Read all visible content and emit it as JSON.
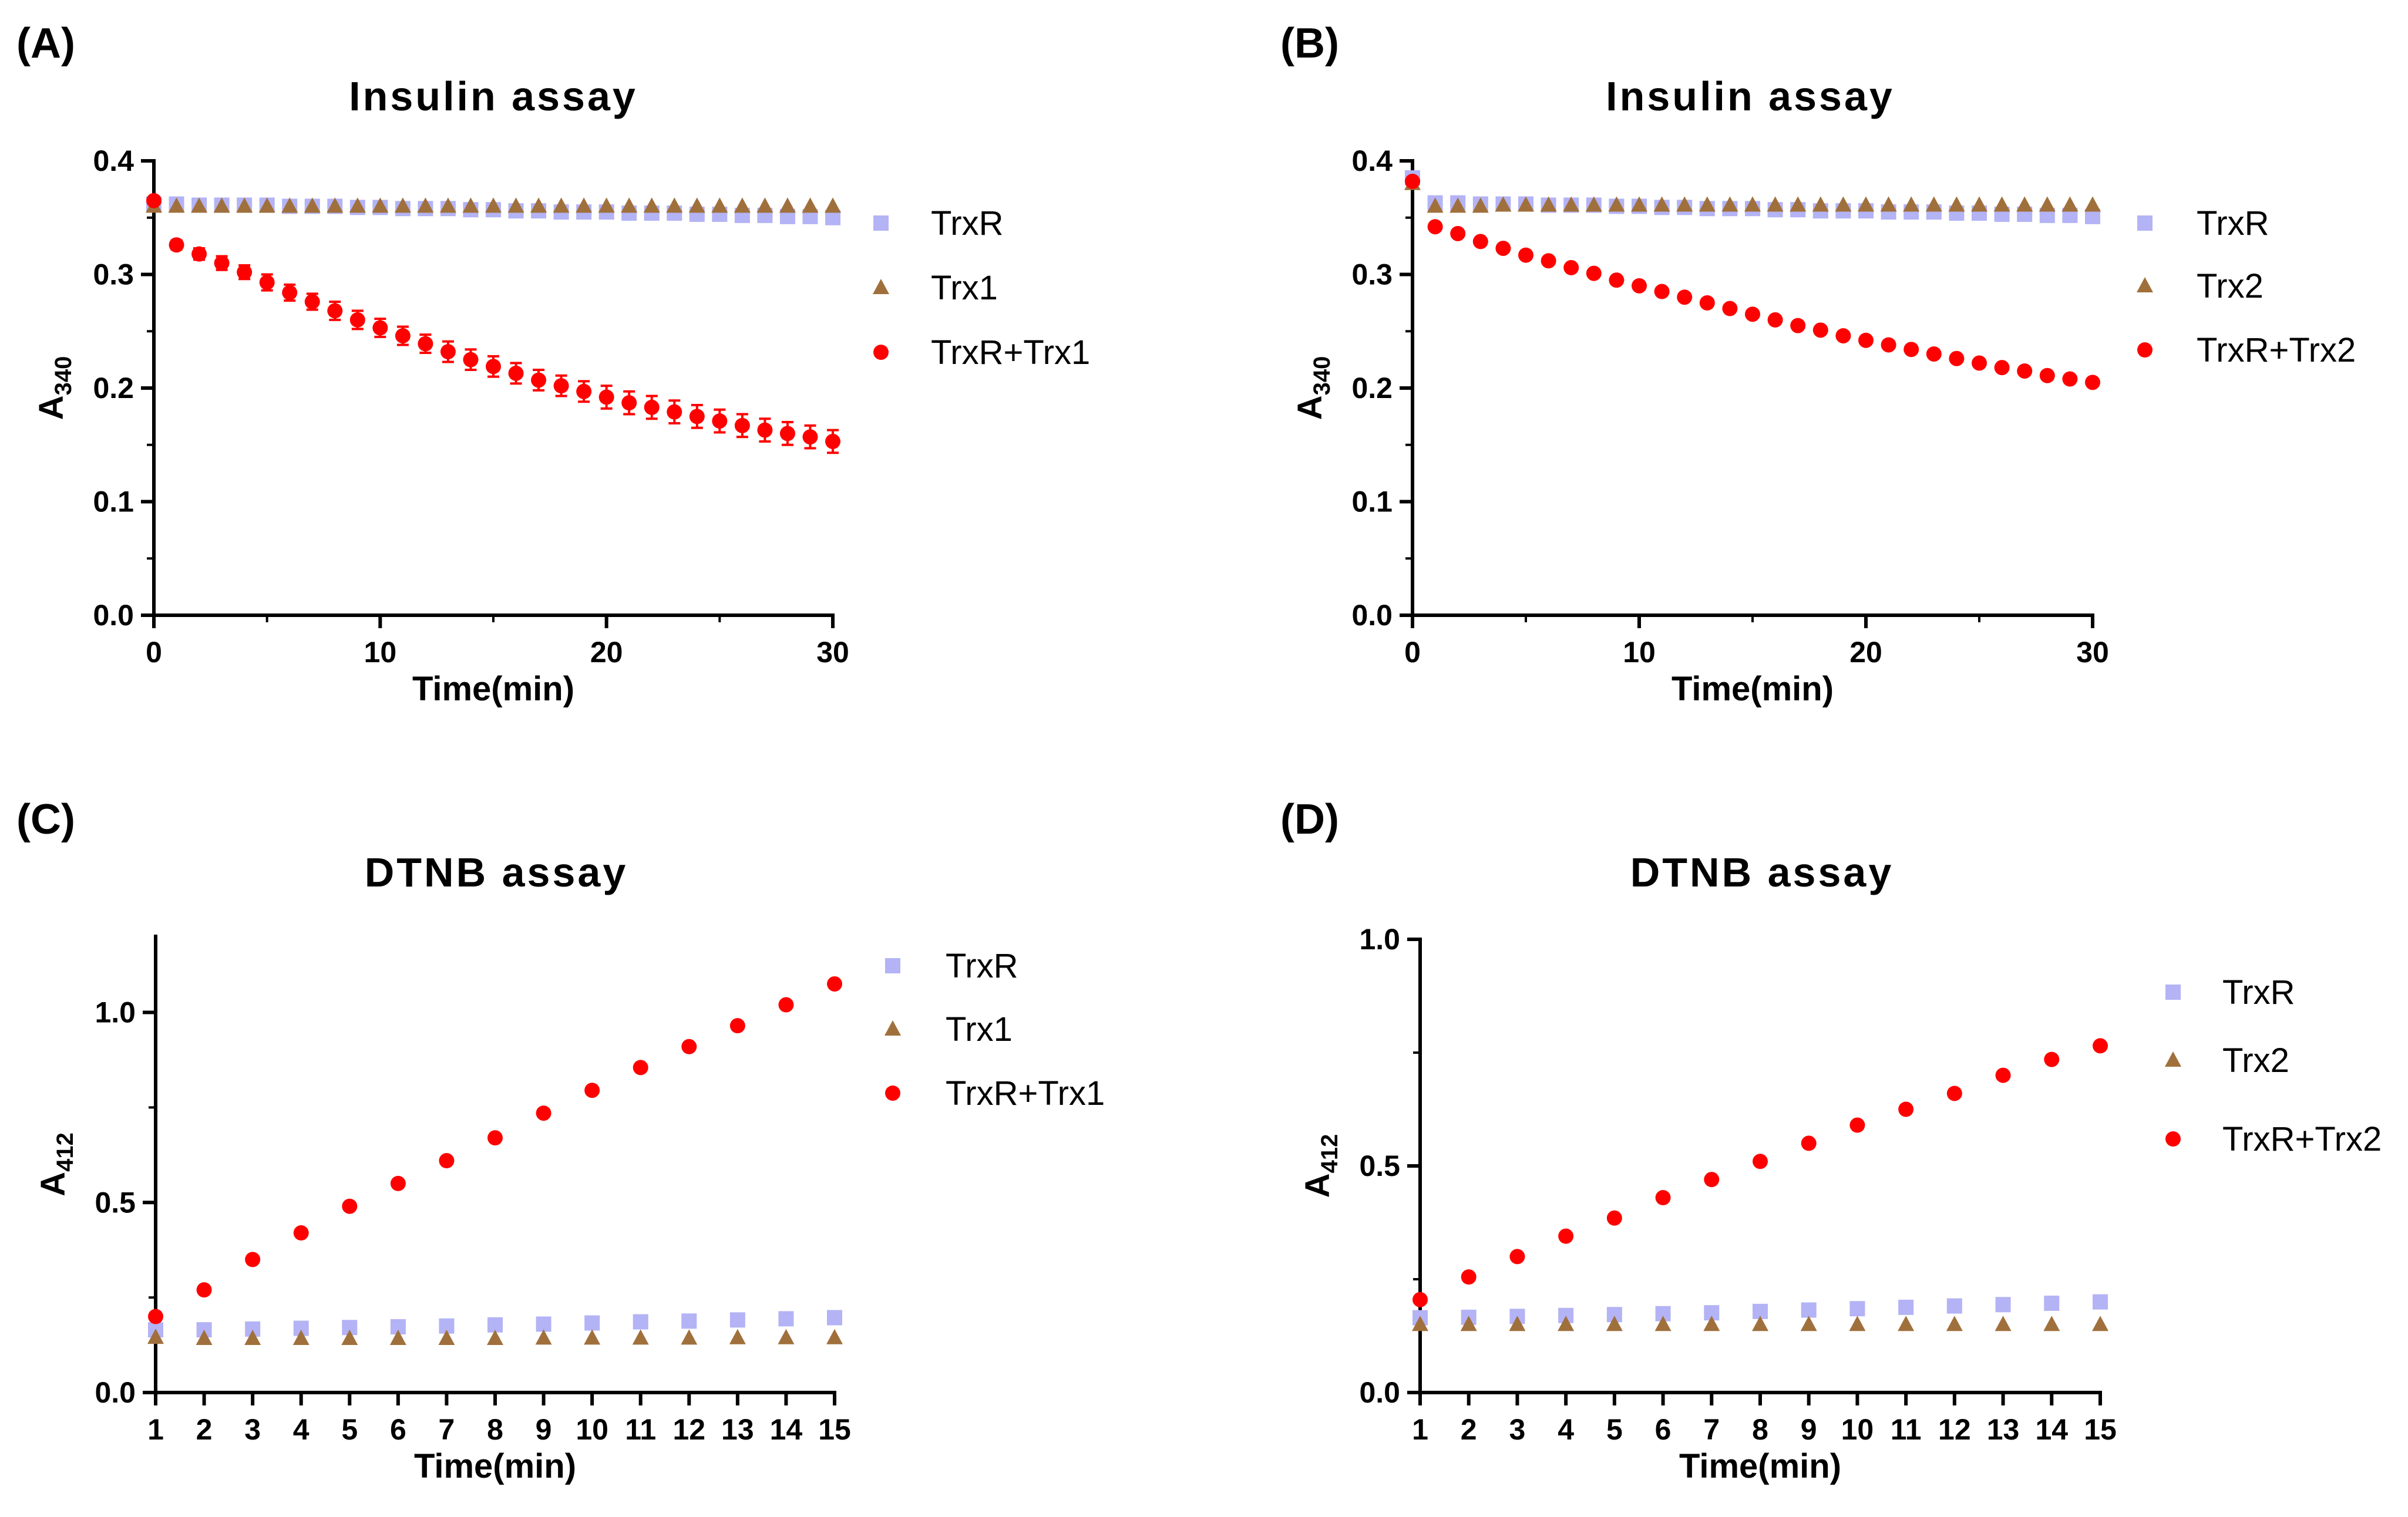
{
  "chart_data": [
    {
      "panel_label": "(A)",
      "type": "scatter",
      "title": "Insulin assay",
      "xlabel": "Time(min)",
      "ylabel": "A",
      "ylabel_sub": "340",
      "xlim": [
        0,
        30
      ],
      "ylim": [
        0,
        0.4
      ],
      "xticks": [
        0,
        10,
        20,
        30
      ],
      "xtick_labels": [
        "0",
        "10",
        "20",
        "30"
      ],
      "yticks": [
        0,
        0.1,
        0.2,
        0.3,
        0.4
      ],
      "ytick_labels": [
        "0.0",
        "0.1",
        "0.2",
        "0.3",
        "0.4"
      ],
      "legend_position": "right",
      "series": [
        {
          "name": "TrxR",
          "marker": "square",
          "color": "#b3b3f5",
          "x": [
            0,
            1,
            2,
            3,
            4,
            5,
            6,
            7,
            8,
            9,
            10,
            11,
            12,
            13,
            14,
            15,
            16,
            17,
            18,
            19,
            20,
            21,
            22,
            23,
            24,
            25,
            26,
            27,
            28,
            29,
            30
          ],
          "y": [
            0.362,
            0.362,
            0.361,
            0.361,
            0.361,
            0.361,
            0.36,
            0.36,
            0.36,
            0.359,
            0.359,
            0.358,
            0.358,
            0.358,
            0.357,
            0.357,
            0.356,
            0.356,
            0.355,
            0.355,
            0.355,
            0.354,
            0.354,
            0.354,
            0.353,
            0.353,
            0.352,
            0.352,
            0.351,
            0.351,
            0.35
          ]
        },
        {
          "name": "Trx1",
          "marker": "triangle",
          "color": "#a0703c",
          "x": [
            0,
            1,
            2,
            3,
            4,
            5,
            6,
            7,
            8,
            9,
            10,
            11,
            12,
            13,
            14,
            15,
            16,
            17,
            18,
            19,
            20,
            21,
            22,
            23,
            24,
            25,
            26,
            27,
            28,
            29,
            30
          ],
          "y": [
            0.36,
            0.36,
            0.36,
            0.36,
            0.36,
            0.36,
            0.36,
            0.36,
            0.36,
            0.36,
            0.36,
            0.36,
            0.36,
            0.36,
            0.36,
            0.36,
            0.36,
            0.36,
            0.36,
            0.36,
            0.36,
            0.36,
            0.36,
            0.36,
            0.36,
            0.36,
            0.36,
            0.36,
            0.36,
            0.36,
            0.36
          ]
        },
        {
          "name": "TrxR+Trx1",
          "marker": "circle",
          "color": "#ff0000",
          "x": [
            0,
            1,
            2,
            3,
            4,
            5,
            6,
            7,
            8,
            9,
            10,
            11,
            12,
            13,
            14,
            15,
            16,
            17,
            18,
            19,
            20,
            21,
            22,
            23,
            24,
            25,
            26,
            27,
            28,
            29,
            30
          ],
          "y": [
            0.365,
            0.326,
            0.318,
            0.31,
            0.302,
            0.293,
            0.284,
            0.276,
            0.268,
            0.26,
            0.253,
            0.246,
            0.239,
            0.232,
            0.225,
            0.219,
            0.213,
            0.207,
            0.202,
            0.197,
            0.192,
            0.187,
            0.183,
            0.179,
            0.175,
            0.171,
            0.167,
            0.163,
            0.16,
            0.157,
            0.153
          ],
          "err": [
            0,
            0.004,
            0.005,
            0.006,
            0.006,
            0.007,
            0.007,
            0.007,
            0.008,
            0.008,
            0.008,
            0.008,
            0.008,
            0.009,
            0.009,
            0.009,
            0.009,
            0.009,
            0.009,
            0.009,
            0.01,
            0.01,
            0.01,
            0.01,
            0.01,
            0.01,
            0.01,
            0.01,
            0.01,
            0.01,
            0.01
          ]
        }
      ]
    },
    {
      "panel_label": "(B)",
      "type": "scatter",
      "title": "Insulin assay",
      "xlabel": "Time(min)",
      "ylabel": "A",
      "ylabel_sub": "340",
      "xlim": [
        0,
        30
      ],
      "ylim": [
        0,
        0.4
      ],
      "xticks": [
        0,
        10,
        20,
        30
      ],
      "xtick_labels": [
        "0",
        "10",
        "20",
        "30"
      ],
      "yticks": [
        0,
        0.1,
        0.2,
        0.3,
        0.4
      ],
      "ytick_labels": [
        "0.0",
        "0.1",
        "0.2",
        "0.3",
        "0.4"
      ],
      "legend_position": "right",
      "series": [
        {
          "name": "TrxR",
          "marker": "square",
          "color": "#b3b3f5",
          "x": [
            0,
            1,
            2,
            3,
            4,
            5,
            6,
            7,
            8,
            9,
            10,
            11,
            12,
            13,
            14,
            15,
            16,
            17,
            18,
            19,
            20,
            21,
            22,
            23,
            24,
            25,
            26,
            27,
            28,
            29,
            30
          ],
          "y": [
            0.385,
            0.363,
            0.363,
            0.362,
            0.362,
            0.362,
            0.361,
            0.361,
            0.361,
            0.36,
            0.36,
            0.359,
            0.359,
            0.358,
            0.358,
            0.358,
            0.357,
            0.357,
            0.356,
            0.356,
            0.356,
            0.355,
            0.355,
            0.355,
            0.354,
            0.354,
            0.353,
            0.353,
            0.352,
            0.352,
            0.351
          ]
        },
        {
          "name": "Trx2",
          "marker": "triangle",
          "color": "#a0703c",
          "x": [
            0,
            1,
            2,
            3,
            4,
            5,
            6,
            7,
            8,
            9,
            10,
            11,
            12,
            13,
            14,
            15,
            16,
            17,
            18,
            19,
            20,
            21,
            22,
            23,
            24,
            25,
            26,
            27,
            28,
            29,
            30
          ],
          "y": [
            0.38,
            0.36,
            0.36,
            0.36,
            0.361,
            0.361,
            0.361,
            0.361,
            0.361,
            0.361,
            0.361,
            0.361,
            0.361,
            0.361,
            0.361,
            0.361,
            0.361,
            0.361,
            0.361,
            0.361,
            0.361,
            0.361,
            0.361,
            0.361,
            0.361,
            0.361,
            0.361,
            0.361,
            0.361,
            0.361,
            0.361
          ]
        },
        {
          "name": "TrxR+Trx2",
          "marker": "circle",
          "color": "#ff0000",
          "x": [
            0,
            1,
            2,
            3,
            4,
            5,
            6,
            7,
            8,
            9,
            10,
            11,
            12,
            13,
            14,
            15,
            16,
            17,
            18,
            19,
            20,
            21,
            22,
            23,
            24,
            25,
            26,
            27,
            28,
            29,
            30
          ],
          "y": [
            0.382,
            0.342,
            0.336,
            0.329,
            0.323,
            0.317,
            0.312,
            0.306,
            0.301,
            0.295,
            0.29,
            0.285,
            0.28,
            0.275,
            0.27,
            0.265,
            0.26,
            0.255,
            0.251,
            0.246,
            0.242,
            0.238,
            0.234,
            0.23,
            0.226,
            0.222,
            0.218,
            0.215,
            0.211,
            0.208,
            0.205
          ]
        }
      ]
    },
    {
      "panel_label": "(C)",
      "type": "scatter",
      "title": "DTNB assay",
      "xlabel": "Time(min)",
      "ylabel": "A",
      "ylabel_sub": "412",
      "xlim": [
        1,
        15
      ],
      "ylim": [
        0,
        1.2
      ],
      "xticks": [
        1,
        2,
        3,
        4,
        5,
        6,
        7,
        8,
        9,
        10,
        11,
        12,
        13,
        14,
        15
      ],
      "xtick_labels": [
        "1",
        "2",
        "3",
        "4",
        "5",
        "6",
        "7",
        "8",
        "9",
        "10",
        "11",
        "12",
        "13",
        "14",
        "15"
      ],
      "yticks": [
        0,
        0.5,
        1.0
      ],
      "ytick_labels": [
        "0.0",
        "0.5",
        "1.0"
      ],
      "legend_position": "right",
      "series": [
        {
          "name": "TrxR",
          "marker": "square",
          "color": "#b3b3f5",
          "x": [
            1,
            2,
            3,
            4,
            5,
            6,
            7,
            8,
            9,
            10,
            11,
            12,
            13,
            14,
            15
          ],
          "y": [
            0.165,
            0.165,
            0.167,
            0.169,
            0.171,
            0.173,
            0.175,
            0.178,
            0.18,
            0.183,
            0.186,
            0.188,
            0.191,
            0.194,
            0.197
          ]
        },
        {
          "name": "Trx1",
          "marker": "triangle",
          "color": "#a0703c",
          "x": [
            1,
            2,
            3,
            4,
            5,
            6,
            7,
            8,
            9,
            10,
            11,
            12,
            13,
            14,
            15
          ],
          "y": [
            0.145,
            0.142,
            0.142,
            0.142,
            0.142,
            0.142,
            0.142,
            0.142,
            0.143,
            0.143,
            0.143,
            0.143,
            0.144,
            0.144,
            0.144
          ]
        },
        {
          "name": "TrxR+Trx1",
          "marker": "circle",
          "color": "#ff0000",
          "x": [
            1,
            2,
            3,
            4,
            5,
            6,
            7,
            8,
            9,
            10,
            11,
            12,
            13,
            14,
            15
          ],
          "y": [
            0.2,
            0.27,
            0.35,
            0.42,
            0.49,
            0.55,
            0.61,
            0.67,
            0.735,
            0.795,
            0.855,
            0.91,
            0.965,
            1.02,
            1.075
          ]
        }
      ]
    },
    {
      "panel_label": "(D)",
      "type": "scatter",
      "title": "DTNB assay",
      "xlabel": "Time(min)",
      "ylabel": "A",
      "ylabel_sub": "412",
      "xlim": [
        1,
        15
      ],
      "ylim": [
        0,
        1.0
      ],
      "xticks": [
        1,
        2,
        3,
        4,
        5,
        6,
        7,
        8,
        9,
        10,
        11,
        12,
        13,
        14,
        15
      ],
      "xtick_labels": [
        "1",
        "2",
        "3",
        "4",
        "5",
        "6",
        "7",
        "8",
        "9",
        "10",
        "11",
        "12",
        "13",
        "14",
        "15"
      ],
      "yticks": [
        0,
        0.5,
        1.0
      ],
      "ytick_labels": [
        "0.0",
        "0.5",
        "1.0"
      ],
      "legend_position": "right",
      "series": [
        {
          "name": "TrxR",
          "marker": "square",
          "color": "#b3b3f5",
          "x": [
            1,
            2,
            3,
            4,
            5,
            6,
            7,
            8,
            9,
            10,
            11,
            12,
            13,
            14,
            15
          ],
          "y": [
            0.165,
            0.166,
            0.168,
            0.17,
            0.172,
            0.174,
            0.176,
            0.179,
            0.182,
            0.185,
            0.188,
            0.191,
            0.194,
            0.197,
            0.2
          ]
        },
        {
          "name": "Trx2",
          "marker": "triangle",
          "color": "#a0703c",
          "x": [
            1,
            2,
            3,
            4,
            5,
            6,
            7,
            8,
            9,
            10,
            11,
            12,
            13,
            14,
            15
          ],
          "y": [
            0.15,
            0.15,
            0.15,
            0.15,
            0.15,
            0.15,
            0.15,
            0.15,
            0.15,
            0.15,
            0.15,
            0.15,
            0.15,
            0.15,
            0.15
          ]
        },
        {
          "name": "TrxR+Trx2",
          "marker": "circle",
          "color": "#ff0000",
          "x": [
            1,
            2,
            3,
            4,
            5,
            6,
            7,
            8,
            9,
            10,
            11,
            12,
            13,
            14,
            15
          ],
          "y": [
            0.205,
            0.255,
            0.3,
            0.345,
            0.385,
            0.43,
            0.47,
            0.51,
            0.55,
            0.59,
            0.625,
            0.66,
            0.7,
            0.735,
            0.765
          ]
        }
      ]
    }
  ]
}
